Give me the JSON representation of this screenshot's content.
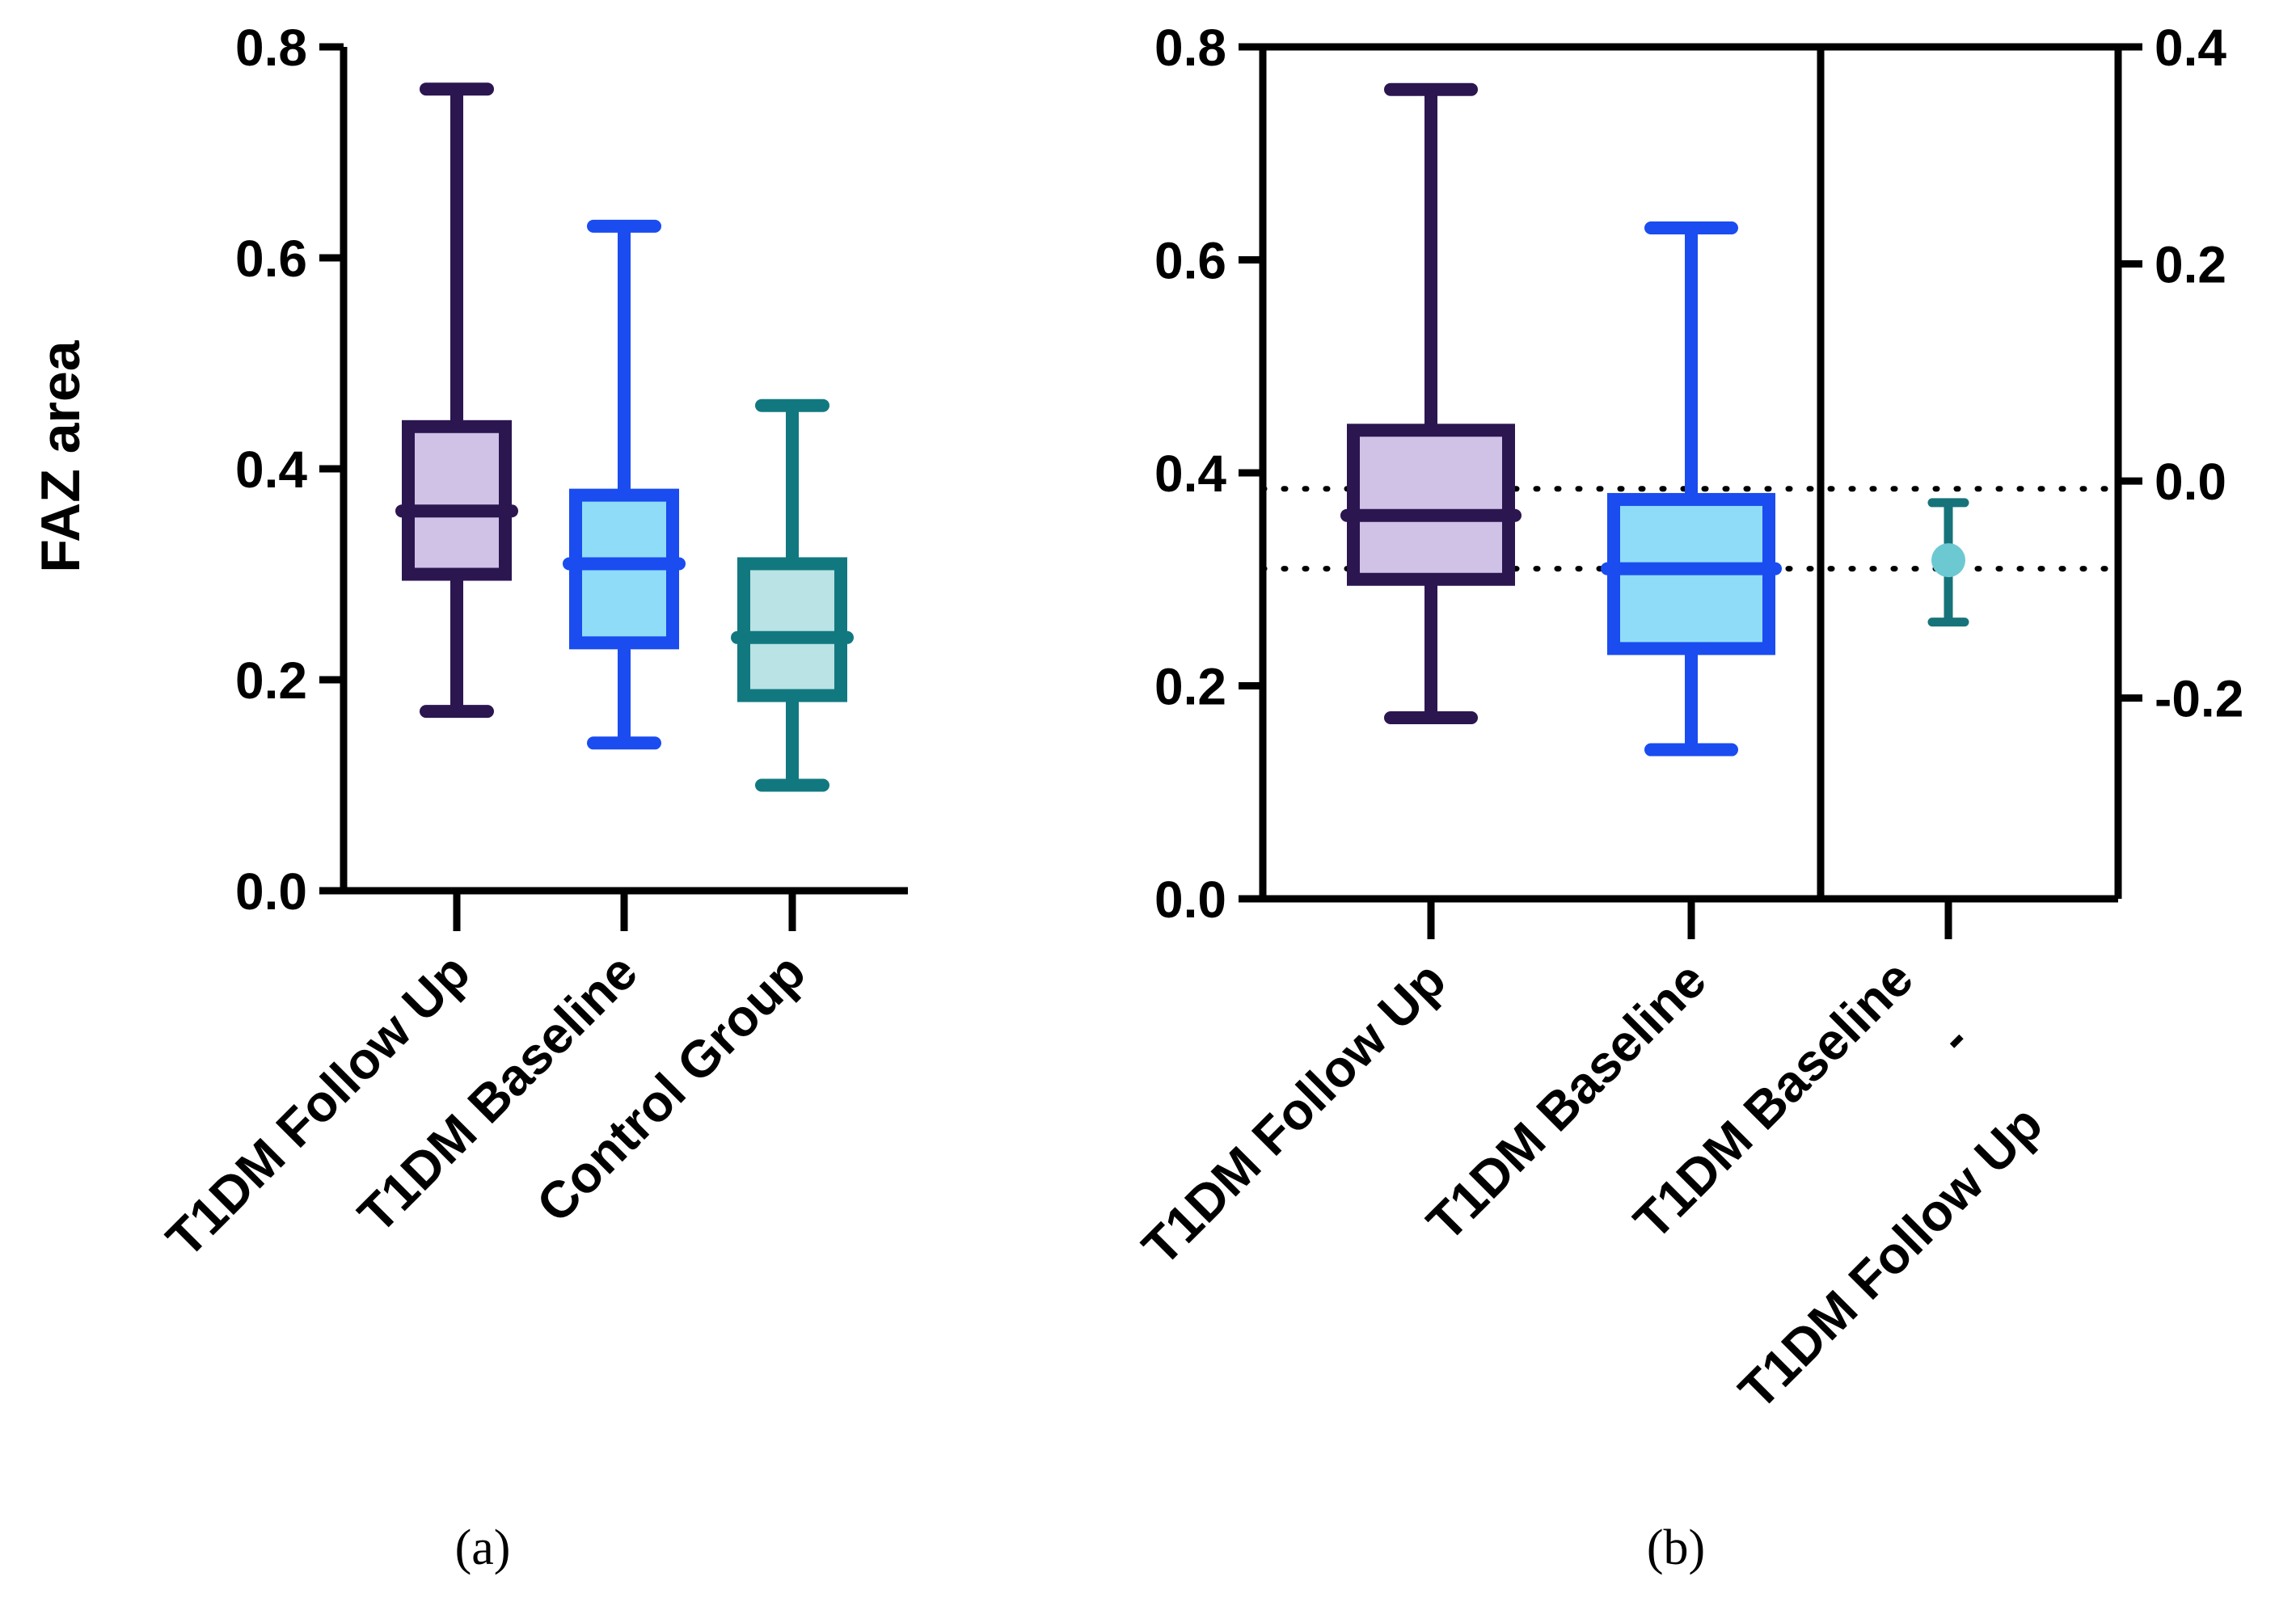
{
  "figure": {
    "panel_labels": [
      "(a)",
      "(b)"
    ],
    "shared_ylabel": "FAZ area"
  },
  "colors": {
    "follow_up_edge": "#2b1650",
    "follow_up_fill": "#d0c2e6",
    "baseline_edge": "#1a4cf0",
    "baseline_fill": "#8fdcf8",
    "control_edge": "#127880",
    "control_fill": "#b9e3e4",
    "diff_edge": "#17737a",
    "diff_point": "#6cc9d2",
    "axis": "#000000"
  },
  "chart_data": [
    {
      "panel": "(a)",
      "type": "box",
      "title": "",
      "ylabel": "FAZ area",
      "ylim": [
        0,
        0.8
      ],
      "yticks": [
        "0.0",
        "0.2",
        "0.4",
        "0.6",
        "0.8"
      ],
      "grid": false,
      "categories": [
        "T1DM Follow Up",
        "T1DM Baseline",
        "Control Group"
      ],
      "boxes": [
        {
          "category": "T1DM Follow Up",
          "min": 0.17,
          "q1": 0.3,
          "median": 0.36,
          "q3": 0.44,
          "max": 0.76
        },
        {
          "category": "T1DM Baseline",
          "min": 0.14,
          "q1": 0.235,
          "median": 0.31,
          "q3": 0.375,
          "max": 0.63
        },
        {
          "category": "Control Group",
          "min": 0.1,
          "q1": 0.185,
          "median": 0.24,
          "q3": 0.31,
          "max": 0.46
        }
      ]
    },
    {
      "panel": "(b)",
      "type": "box",
      "title": "",
      "ylim": [
        0,
        0.8
      ],
      "yticks": [
        "0.0",
        "0.2",
        "0.4",
        "0.6",
        "0.8"
      ],
      "y2lim": [
        -0.385,
        0.4
      ],
      "y2ticks": [
        "-0.2",
        "0.0",
        "0.2",
        "0.4"
      ],
      "grid": false,
      "categories": [
        "T1DM Follow Up",
        "T1DM Baseline"
      ],
      "boxes": [
        {
          "category": "T1DM Follow Up",
          "min": 0.17,
          "q1": 0.3,
          "median": 0.36,
          "q3": 0.44,
          "max": 0.76
        },
        {
          "category": "T1DM Baseline",
          "min": 0.14,
          "q1": 0.235,
          "median": 0.31,
          "q3": 0.375,
          "max": 0.63
        }
      ],
      "difference": {
        "label_lines": [
          "T1DM Baseline",
          "-",
          "T1DM Follow Up"
        ],
        "mean": -0.073,
        "ci_low": -0.13,
        "ci_high": -0.02
      },
      "reference_lines_y": [
        0.385,
        0.31
      ]
    }
  ]
}
